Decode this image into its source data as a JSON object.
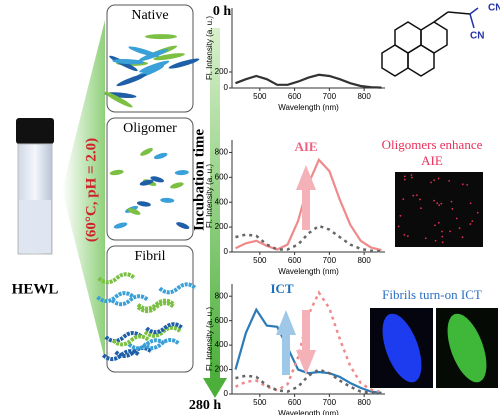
{
  "panel": {
    "stages": [
      "Native",
      "Oligomer",
      "Fibril"
    ],
    "start": "0 h",
    "end": "280 h",
    "axis": "Incubation time",
    "condition": "(60°C, pH = 2.0)",
    "sample": "HEWL"
  },
  "molecule": {
    "groups": [
      "CN",
      "CN"
    ]
  },
  "notes": {
    "aie": "AIE",
    "aie_caption": [
      "Oligomers enhance",
      "AIE"
    ],
    "ict": "ICT",
    "ict_caption": "Fibrils turn-on  ICT"
  },
  "chart_data": [
    {
      "type": "line",
      "ylabel": "Fl. Intensity (a. u.)",
      "xlabel": "Wavelength (nm)",
      "x": [
        430,
        460,
        490,
        520,
        550,
        580,
        610,
        640,
        670,
        700,
        730,
        760,
        790,
        820,
        850
      ],
      "xlim": [
        420,
        860
      ],
      "xticks": [
        500,
        600,
        700,
        800
      ],
      "ylim": [
        0,
        1000
      ],
      "yticks": [
        0,
        200
      ],
      "series": [
        {
          "color": "#333333",
          "dash": false,
          "values": [
            60,
            110,
            150,
            110,
            40,
            40,
            80,
            130,
            165,
            150,
            110,
            60,
            25,
            10,
            5
          ]
        }
      ]
    },
    {
      "type": "line",
      "ylabel": "Fl. Intensity (a. u.)",
      "xlabel": "Wavelength (nm)",
      "x": [
        430,
        460,
        490,
        520,
        550,
        580,
        610,
        640,
        670,
        700,
        730,
        760,
        790,
        820,
        850
      ],
      "xlim": [
        420,
        860
      ],
      "xticks": [
        500,
        600,
        700,
        800
      ],
      "ylim": [
        0,
        900
      ],
      "yticks": [
        0,
        200,
        400,
        600,
        800
      ],
      "series": [
        {
          "color": "#f08a8a",
          "dash": false,
          "values": [
            30,
            70,
            90,
            50,
            20,
            60,
            250,
            550,
            740,
            650,
            420,
            220,
            90,
            35,
            15
          ]
        },
        {
          "color": "#666666",
          "dash": true,
          "values": [
            120,
            140,
            130,
            60,
            20,
            20,
            60,
            150,
            210,
            180,
            120,
            60,
            25,
            10,
            5
          ]
        }
      ]
    },
    {
      "type": "line",
      "ylabel": "Fl. Intensity (a. u.)",
      "xlabel": "Wavelength (nm)",
      "x": [
        430,
        460,
        490,
        520,
        550,
        580,
        610,
        640,
        670,
        700,
        730,
        760,
        790,
        820,
        850
      ],
      "xlim": [
        420,
        860
      ],
      "xticks": [
        500,
        600,
        700,
        800
      ],
      "ylim": [
        0,
        900
      ],
      "yticks": [
        0,
        200,
        400,
        600,
        800
      ],
      "series": [
        {
          "color": "#2b7bb9",
          "dash": false,
          "values": [
            200,
            500,
            690,
            560,
            550,
            380,
            200,
            170,
            180,
            170,
            140,
            90,
            50,
            20,
            10
          ]
        },
        {
          "color": "#f08a8a",
          "dash": true,
          "values": [
            60,
            100,
            110,
            60,
            30,
            80,
            300,
            650,
            830,
            700,
            450,
            230,
            90,
            35,
            15
          ]
        },
        {
          "color": "#666666",
          "dash": true,
          "values": [
            130,
            150,
            140,
            70,
            30,
            20,
            60,
            150,
            200,
            170,
            110,
            60,
            20,
            10,
            5
          ]
        }
      ]
    }
  ]
}
